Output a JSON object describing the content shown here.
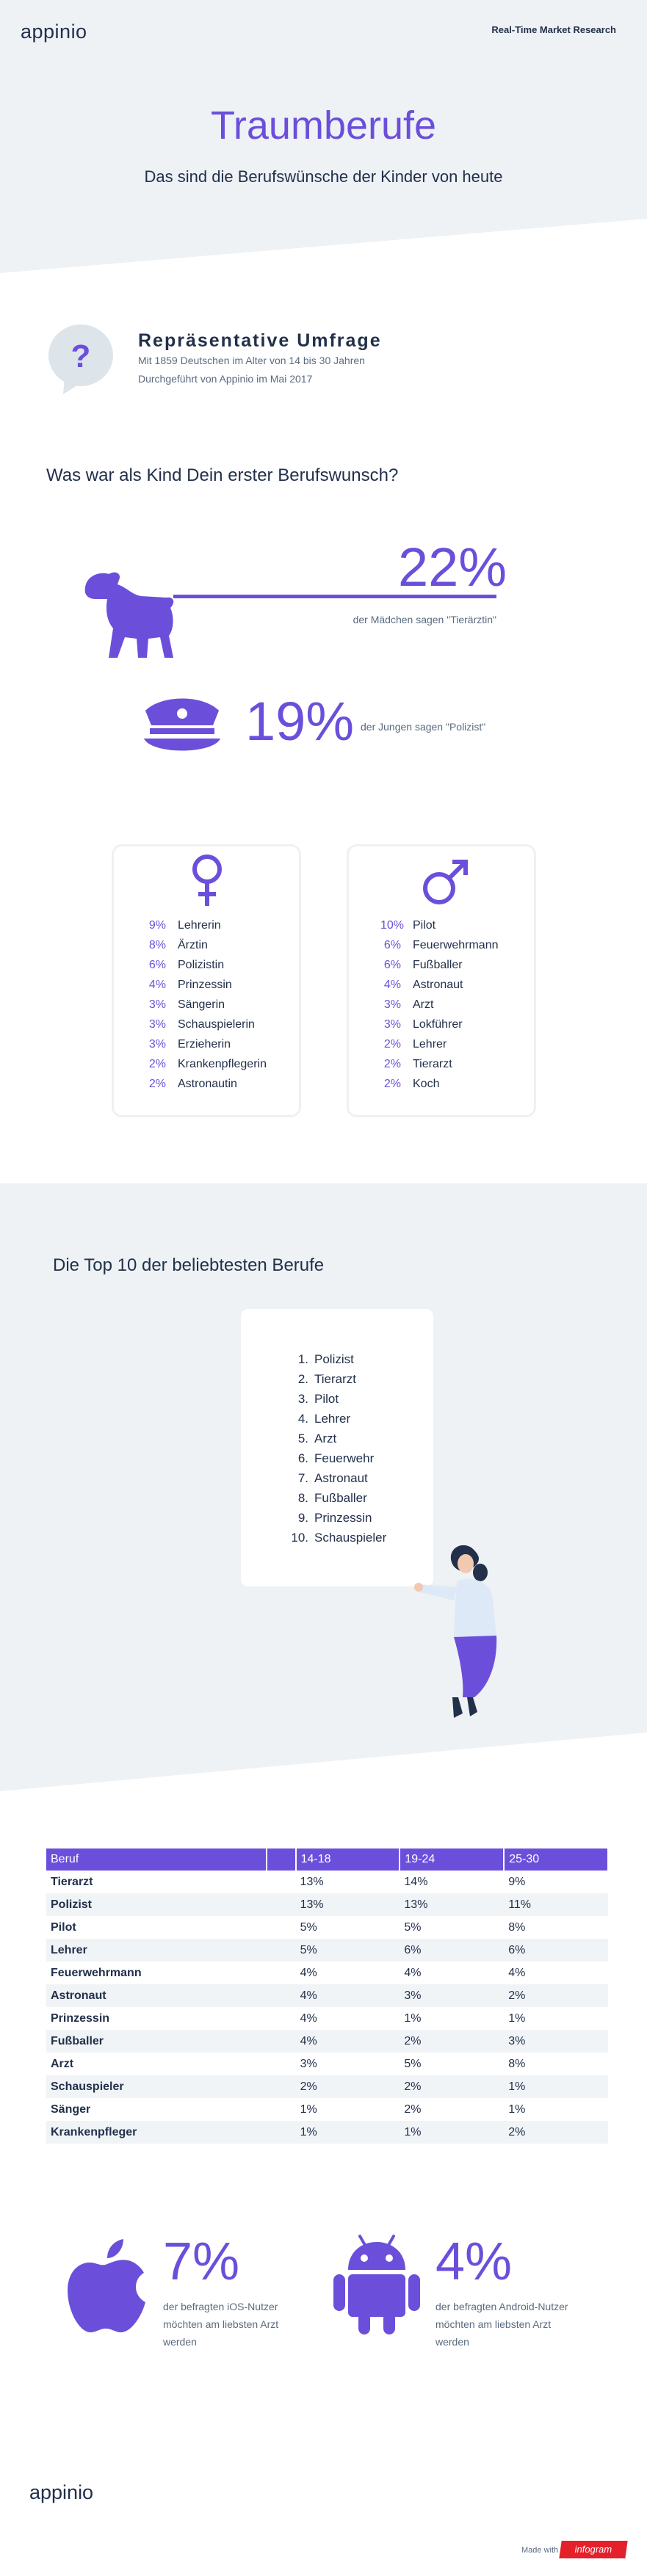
{
  "header": {
    "logo": "appinio",
    "tagline": "Real-Time Market Research"
  },
  "hero": {
    "title": "Traumberufe",
    "subtitle": "Das sind die Berufswünsche der Kinder von heute"
  },
  "survey": {
    "icon": "question-mark-bubble-icon",
    "heading": "Repräsentative Umfrage",
    "line1": "Mit 1859 Deutschen im Alter von 14 bis 30 Jahren",
    "line2": "Durchgeführt von Appinio im Mai 2017"
  },
  "question": "Was war als Kind Dein erster Berufswunsch?",
  "stats": {
    "girls_pct": "22%",
    "girls_text": "der Mädchen sagen \"Tierärztin\"",
    "girls_icon": "dog-icon",
    "boys_pct": "19%",
    "boys_text": "der Jungen sagen \"Polizist\"",
    "boys_icon": "police-cap-icon"
  },
  "female": {
    "icon": "female-symbol-icon",
    "items": [
      {
        "pct": "9%",
        "job": "Lehrerin"
      },
      {
        "pct": "8%",
        "job": "Ärztin"
      },
      {
        "pct": "6%",
        "job": "Polizistin"
      },
      {
        "pct": "4%",
        "job": "Prinzessin"
      },
      {
        "pct": "3%",
        "job": "Sängerin"
      },
      {
        "pct": "3%",
        "job": "Schauspielerin"
      },
      {
        "pct": "3%",
        "job": "Erzieherin"
      },
      {
        "pct": "2%",
        "job": "Krankenpflegerin"
      },
      {
        "pct": "2%",
        "job": "Astronautin"
      }
    ]
  },
  "male": {
    "icon": "male-symbol-icon",
    "items": [
      {
        "pct": "10%",
        "job": "Pilot"
      },
      {
        "pct": "6%",
        "job": "Feuerwehrmann"
      },
      {
        "pct": "6%",
        "job": "Fußballer"
      },
      {
        "pct": "4%",
        "job": "Astronaut"
      },
      {
        "pct": "3%",
        "job": "Arzt"
      },
      {
        "pct": "3%",
        "job": "Lokführer"
      },
      {
        "pct": "2%",
        "job": "Lehrer"
      },
      {
        "pct": "2%",
        "job": "Tierarzt"
      },
      {
        "pct": "2%",
        "job": "Koch"
      }
    ]
  },
  "top10": {
    "heading": "Die Top 10 der beliebtesten Berufe",
    "items": [
      {
        "n": "1.",
        "job": "Polizist"
      },
      {
        "n": "2.",
        "job": "Tierarzt"
      },
      {
        "n": "3.",
        "job": "Pilot"
      },
      {
        "n": "4.",
        "job": "Lehrer"
      },
      {
        "n": "5.",
        "job": "Arzt"
      },
      {
        "n": "6.",
        "job": "Feuerwehr"
      },
      {
        "n": "7.",
        "job": "Astronaut"
      },
      {
        "n": "8.",
        "job": "Fußballer"
      },
      {
        "n": "9.",
        "job": "Prinzessin"
      },
      {
        "n": "10.",
        "job": "Schauspieler"
      }
    ],
    "illustration": "woman-holding-list-illustration"
  },
  "table": {
    "headers": [
      "Beruf",
      "",
      "14-18",
      "19-24",
      "25-30"
    ],
    "rows": [
      [
        "Tierarzt",
        "13%",
        "14%",
        "9%"
      ],
      [
        "Polizist",
        "13%",
        "13%",
        "11%"
      ],
      [
        "Pilot",
        "5%",
        "5%",
        "8%"
      ],
      [
        "Lehrer",
        "5%",
        "6%",
        "6%"
      ],
      [
        "Feuerwehrmann",
        "4%",
        "4%",
        "4%"
      ],
      [
        "Astronaut",
        "4%",
        "3%",
        "2%"
      ],
      [
        "Prinzessin",
        "4%",
        "1%",
        "1%"
      ],
      [
        "Fußballer",
        "4%",
        "2%",
        "3%"
      ],
      [
        "Arzt",
        "3%",
        "5%",
        "8%"
      ],
      [
        "Schauspieler",
        "2%",
        "2%",
        "1%"
      ],
      [
        "Sänger",
        "1%",
        "2%",
        "1%"
      ],
      [
        "Krankenpfleger",
        "1%",
        "1%",
        "2%"
      ]
    ]
  },
  "devices": {
    "ios_pct": "7%",
    "ios_line1": "der befragten iOS-Nutzer",
    "ios_line2": "möchten am liebsten Arzt",
    "ios_line3": "werden",
    "ios_icon": "apple-logo-icon",
    "android_pct": "4%",
    "android_line1": "der befragten Android-Nutzer",
    "android_line2": "möchten am liebsten Arzt",
    "android_line3": "werden",
    "android_icon": "android-robot-icon"
  },
  "footer": {
    "logo": "appinio",
    "made_with": "Made with",
    "badge": "infogram"
  },
  "colors": {
    "accent": "#6b4fdb",
    "navy": "#22304a",
    "bg_band": "#eef2f5"
  }
}
